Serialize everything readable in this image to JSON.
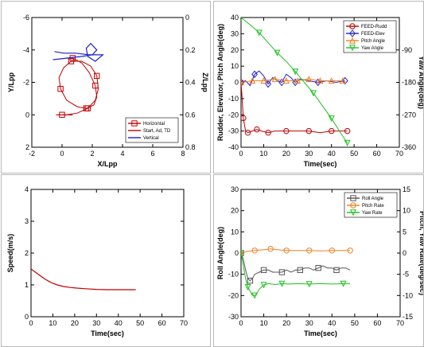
{
  "chart_data": [
    {
      "type": "line",
      "xlabel": "X/Lpp",
      "ylabel": "Y/Lpp",
      "y2label": "Z/Lpp",
      "xlim": [
        -2,
        8
      ],
      "ylim": [
        2,
        -6
      ],
      "y2lim": [
        0.8,
        0
      ],
      "xticks": [
        "-2",
        "0",
        "2",
        "4",
        "6",
        "8"
      ],
      "yticks": [
        "-6",
        "-4",
        "-2",
        "0",
        "2"
      ],
      "y2ticks": [
        "0",
        "0.2",
        "0.4",
        "0.6",
        "0.8"
      ],
      "series": [
        {
          "name": "Horizontal",
          "color": "#c00000",
          "marker": "square",
          "x": [
            0.0,
            0.3,
            1.0,
            1.7,
            2.2,
            2.4,
            2.3,
            1.9,
            1.3,
            0.6,
            0.1,
            -0.2,
            -0.1,
            0.3,
            1.0,
            1.6,
            2.1,
            2.3,
            2.2,
            1.8,
            1.3,
            0.7,
            0.3
          ],
          "y": [
            0.0,
            0.0,
            -0.1,
            -0.4,
            -0.9,
            -1.6,
            -2.4,
            -3.0,
            -3.3,
            -3.3,
            -2.9,
            -2.3,
            -1.6,
            -0.9,
            -0.5,
            -0.4,
            -0.6,
            -1.1,
            -1.8,
            -2.6,
            -3.2,
            -3.5,
            -3.5
          ]
        },
        {
          "name": "Start, Ad, TD",
          "color": "#c00000",
          "marker": "none",
          "x": [
            -0.4,
            0.0,
            0.4,
            0.7
          ],
          "y": [
            0.0,
            0.0,
            0.0,
            0.0
          ]
        },
        {
          "name": "Vertical",
          "color": "#1f1fcc",
          "marker": "none",
          "x": [
            -0.6,
            0.4,
            1.3,
            2.0,
            2.3,
            1.9,
            1.6,
            1.7,
            2.2,
            2.7,
            1.8,
            0.9,
            0.1,
            -0.5
          ],
          "y": [
            -3.4,
            -3.5,
            -3.6,
            -3.7,
            -4.0,
            -4.4,
            -4.1,
            -3.6,
            -3.3,
            -3.7,
            -3.7,
            -3.8,
            -3.8,
            -3.9
          ]
        }
      ],
      "legend": "bottom-right"
    },
    {
      "type": "line",
      "xlabel": "Time(sec)",
      "ylabel": "Rudder, Elevator, Pitch Angle(deg)",
      "y2label": "Yaw Angle(deg)",
      "xlim": [
        0,
        70
      ],
      "ylim": [
        -40,
        40
      ],
      "y2lim": [
        -360,
        0
      ],
      "xticks": [
        "0",
        "10",
        "20",
        "30",
        "40",
        "50",
        "60",
        "70"
      ],
      "yticks": [
        "40",
        "30",
        "20",
        "10",
        "0",
        "-10",
        "-20",
        "-30",
        "-40"
      ],
      "y2ticks": [
        "-90",
        "-180",
        "-270",
        "-360"
      ],
      "series": [
        {
          "name": "FEED-Rudd",
          "color": "#c00000",
          "marker": "circle",
          "x": [
            0,
            0.5,
            1,
            2,
            3,
            5,
            7,
            9,
            12,
            15,
            20,
            25,
            30,
            35,
            40,
            45,
            47
          ],
          "y": [
            0,
            -10,
            -22,
            -30,
            -31,
            -30,
            -29,
            -30,
            -31,
            -30,
            -30,
            -30,
            -30,
            -31,
            -30,
            -30,
            -30
          ]
        },
        {
          "name": "FEED-Elev",
          "color": "#1f1fcc",
          "marker": "diamond",
          "x": [
            0,
            2,
            4,
            6,
            8,
            10,
            12,
            14,
            16,
            18,
            20,
            22,
            24,
            26,
            30,
            34,
            38,
            42,
            46
          ],
          "y": [
            0,
            1,
            -2,
            5,
            7,
            4,
            -1,
            3,
            1,
            0,
            5,
            3,
            0,
            2,
            1,
            0,
            1,
            0,
            1
          ]
        },
        {
          "name": "Pitch Angle",
          "color": "#f08020",
          "marker": "triangle",
          "x": [
            0,
            5,
            10,
            15,
            20,
            25,
            30,
            35,
            40,
            45
          ],
          "y": [
            0,
            1,
            1,
            2,
            1,
            1,
            2,
            1,
            1,
            1
          ]
        },
        {
          "name": "Yaw Angle",
          "color": "#20c020",
          "marker": "triangle-down",
          "axis": "y2",
          "x": [
            0,
            4,
            8,
            12,
            16,
            20,
            24,
            28,
            32,
            36,
            40,
            44,
            47
          ],
          "y": [
            0,
            -20,
            -42,
            -70,
            -98,
            -122,
            -150,
            -180,
            -210,
            -245,
            -280,
            -320,
            -348
          ]
        }
      ],
      "legend": "top-right"
    },
    {
      "type": "line",
      "xlabel": "Time(sec)",
      "ylabel": "Speed(m/s)",
      "xlim": [
        0,
        70
      ],
      "ylim": [
        0,
        4
      ],
      "xticks": [
        "0",
        "10",
        "20",
        "30",
        "40",
        "50",
        "60",
        "70"
      ],
      "yticks": [
        "0",
        "1",
        "2",
        "3",
        "4"
      ],
      "series": [
        {
          "name": "",
          "color": "#c00000",
          "marker": "none",
          "x": [
            0,
            2,
            4,
            6,
            8,
            10,
            12,
            15,
            18,
            21,
            25,
            30,
            35,
            40,
            45,
            48
          ],
          "y": [
            1.5,
            1.4,
            1.3,
            1.2,
            1.12,
            1.05,
            1.0,
            0.95,
            0.92,
            0.9,
            0.88,
            0.86,
            0.85,
            0.85,
            0.85,
            0.85
          ]
        }
      ]
    },
    {
      "type": "line",
      "xlabel": "Time(sec)",
      "ylabel": "Roll Angle(deg)",
      "y2label": "Pitch, Yaw Rate(deg/sec)",
      "xlim": [
        0,
        70
      ],
      "ylim": [
        -30,
        30
      ],
      "y2lim": [
        -15,
        15
      ],
      "xticks": [
        "0",
        "10",
        "20",
        "30",
        "40",
        "50",
        "60",
        "70"
      ],
      "yticks": [
        "30",
        "20",
        "10",
        "0",
        "-10",
        "-20",
        "-30"
      ],
      "y2ticks": [
        "15",
        "10",
        "5",
        "0",
        "-5",
        "-10",
        "-15"
      ],
      "series": [
        {
          "name": "Roll Angle",
          "color": "#555555",
          "marker": "square",
          "x": [
            0,
            1,
            2,
            3,
            4,
            5,
            6,
            8,
            10,
            12,
            14,
            16,
            18,
            20,
            22,
            24,
            26,
            28,
            30,
            32,
            34,
            36,
            38,
            40,
            42,
            44,
            46,
            48
          ],
          "y": [
            0,
            -3,
            -8,
            -12,
            -13,
            -12,
            -10,
            -9,
            -8,
            -8,
            -9,
            -9,
            -9,
            -8,
            -9,
            -8,
            -8,
            -7,
            -7,
            -8,
            -7,
            -6,
            -7,
            -7,
            -8,
            -7,
            -7,
            -8
          ]
        },
        {
          "name": "Pitch Rate",
          "color": "#f08020",
          "marker": "circle",
          "axis": "y2",
          "x": [
            0,
            3,
            6,
            10,
            13,
            16,
            20,
            25,
            30,
            35,
            40,
            45,
            48
          ],
          "y": [
            0,
            0.4,
            0.6,
            0.8,
            1.0,
            0.8,
            0.6,
            0.6,
            0.6,
            0.5,
            0.6,
            0.6,
            0.6
          ]
        },
        {
          "name": "Yaw Rate",
          "color": "#20c020",
          "marker": "triangle-down",
          "axis": "y2",
          "x": [
            0,
            1,
            2,
            3,
            4,
            5,
            6,
            7,
            8,
            10,
            12,
            15,
            18,
            21,
            25,
            30,
            35,
            40,
            45,
            48
          ],
          "y": [
            0,
            -3,
            -6,
            -8,
            -9,
            -10,
            -10,
            -9.5,
            -8.5,
            -7.5,
            -7.2,
            -7.4,
            -7.2,
            -7.3,
            -7.2,
            -7.3,
            -7.2,
            -7.3,
            -7.2,
            -7.2
          ]
        }
      ],
      "legend": "top-right"
    }
  ]
}
